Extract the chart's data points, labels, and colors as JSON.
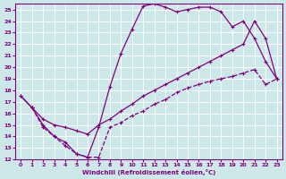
{
  "xlabel": "Windchill (Refroidissement éolien,°C)",
  "bg_color": "#cde8e8",
  "line_color": "#800080",
  "grid_color": "#ffffff",
  "xlim": [
    -0.5,
    23.5
  ],
  "ylim": [
    12,
    25.5
  ],
  "xticks": [
    0,
    1,
    2,
    3,
    4,
    5,
    6,
    7,
    8,
    9,
    10,
    11,
    12,
    13,
    14,
    15,
    16,
    17,
    18,
    19,
    20,
    21,
    22,
    23
  ],
  "yticks": [
    12,
    13,
    14,
    15,
    16,
    17,
    18,
    19,
    20,
    21,
    22,
    23,
    24,
    25
  ],
  "line1_x": [
    0,
    1,
    2,
    3,
    4,
    5,
    6,
    7,
    8,
    9,
    10,
    11,
    12,
    13,
    14,
    15,
    16,
    17,
    18,
    19,
    20,
    21,
    22,
    23
  ],
  "line1_y": [
    17.5,
    16.5,
    15.0,
    14.0,
    13.5,
    12.5,
    12.2,
    14.8,
    18.3,
    21.2,
    23.3,
    25.3,
    25.5,
    25.2,
    24.8,
    25.0,
    25.2,
    25.2,
    24.8,
    23.5,
    24.0,
    22.5,
    20.5,
    19.0
  ],
  "line2_x": [
    0,
    1,
    2,
    3,
    4,
    5,
    6,
    7,
    8,
    9,
    10,
    11,
    12,
    13,
    14,
    15,
    16,
    17,
    18,
    19,
    20,
    21,
    22,
    23
  ],
  "line2_y": [
    17.5,
    16.5,
    15.5,
    15.0,
    14.8,
    14.5,
    14.2,
    15.0,
    15.5,
    16.2,
    16.8,
    17.5,
    18.0,
    18.5,
    19.0,
    19.5,
    20.0,
    20.5,
    21.0,
    21.5,
    22.0,
    24.0,
    22.5,
    19.0
  ],
  "line3_x": [
    1,
    2,
    3,
    4,
    5,
    6,
    7,
    8,
    9,
    10,
    11,
    12,
    13,
    14,
    15,
    16,
    17,
    18,
    19,
    20,
    21,
    22,
    23
  ],
  "line3_y": [
    16.5,
    14.8,
    14.0,
    13.2,
    12.5,
    12.2,
    12.2,
    14.8,
    15.2,
    15.8,
    16.2,
    16.8,
    17.2,
    17.8,
    18.2,
    18.5,
    18.8,
    19.0,
    19.2,
    19.5,
    19.8,
    18.5,
    19.0
  ]
}
